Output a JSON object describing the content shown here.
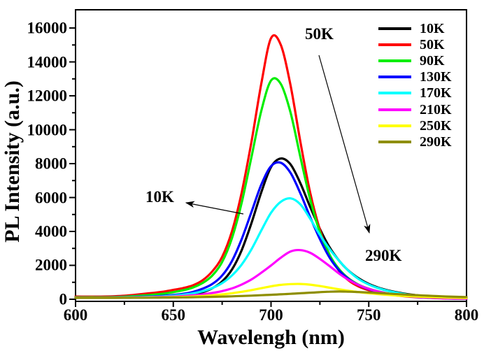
{
  "figure": {
    "background": "#ffffff",
    "text_color": "#000000"
  },
  "chart_data": {
    "type": "line",
    "title": "",
    "xlabel": "Wavelengh (nm)",
    "ylabel": "PL Intensity (a.u.)",
    "xlim": [
      600,
      800
    ],
    "ylim": [
      -125,
      17075
    ],
    "grid": false,
    "legend_position": "top-right-inside",
    "x_major_ticks": [
      600,
      650,
      700,
      750,
      800
    ],
    "x_minor_step": 25,
    "y_major_ticks": [
      0,
      2000,
      4000,
      6000,
      8000,
      10000,
      12000,
      14000,
      16000
    ],
    "y_minor_step": 1000,
    "x": [
      600,
      605,
      610,
      615,
      620,
      625,
      630,
      635,
      640,
      645,
      650,
      655,
      660,
      665,
      670,
      675,
      680,
      685,
      690,
      695,
      700,
      705,
      710,
      715,
      720,
      725,
      730,
      735,
      740,
      745,
      750,
      755,
      760,
      765,
      770,
      775,
      780,
      785,
      790,
      795,
      800
    ],
    "series": [
      {
        "name": "10K",
        "color": "#000000",
        "values": [
          110,
          110,
          110,
          112,
          115,
          120,
          125,
          132,
          140,
          160,
          190,
          230,
          300,
          420,
          650,
          1050,
          1750,
          2900,
          4500,
          6300,
          7800,
          8300,
          7950,
          6850,
          5450,
          4150,
          3050,
          2250,
          1650,
          1220,
          900,
          680,
          520,
          400,
          300,
          230,
          170,
          130,
          100,
          80,
          60
        ]
      },
      {
        "name": "50K",
        "color": "#ff0000",
        "values": [
          160,
          155,
          155,
          160,
          175,
          205,
          260,
          320,
          380,
          450,
          550,
          660,
          820,
          1120,
          1650,
          2500,
          4000,
          6300,
          9300,
          12700,
          15400,
          15000,
          12600,
          9300,
          6300,
          4100,
          2600,
          1650,
          1080,
          740,
          530,
          390,
          285,
          215,
          160,
          120,
          90,
          65,
          45,
          35,
          30
        ]
      },
      {
        "name": "90K",
        "color": "#00ee00",
        "values": [
          120,
          118,
          118,
          120,
          130,
          150,
          185,
          225,
          270,
          330,
          420,
          530,
          690,
          960,
          1400,
          2200,
          3600,
          5700,
          8400,
          11100,
          12900,
          12700,
          11000,
          8400,
          5900,
          3950,
          2600,
          1750,
          1200,
          850,
          620,
          460,
          340,
          260,
          195,
          150,
          110,
          85,
          65,
          50,
          40
        ]
      },
      {
        "name": "130K",
        "color": "#0000ff",
        "values": [
          100,
          100,
          100,
          103,
          108,
          118,
          130,
          148,
          170,
          200,
          250,
          320,
          430,
          620,
          900,
          1400,
          2250,
          3550,
          5150,
          6750,
          7850,
          8050,
          7450,
          6250,
          4850,
          3550,
          2450,
          1680,
          1170,
          820,
          590,
          430,
          315,
          235,
          175,
          130,
          95,
          72,
          55,
          42,
          32
        ]
      },
      {
        "name": "170K",
        "color": "#00ffff",
        "values": [
          95,
          95,
          95,
          98,
          102,
          110,
          120,
          132,
          148,
          170,
          210,
          265,
          345,
          470,
          660,
          950,
          1400,
          2050,
          2950,
          4050,
          5100,
          5750,
          5950,
          5600,
          4750,
          3800,
          2950,
          2250,
          1640,
          1180,
          870,
          650,
          490,
          370,
          275,
          205,
          150,
          112,
          85,
          65,
          50
        ]
      },
      {
        "name": "210K",
        "color": "#ff00ff",
        "values": [
          90,
          90,
          90,
          92,
          95,
          100,
          107,
          115,
          125,
          140,
          160,
          190,
          230,
          290,
          370,
          480,
          640,
          870,
          1170,
          1560,
          1990,
          2450,
          2820,
          2900,
          2740,
          2380,
          1950,
          1500,
          1120,
          830,
          610,
          450,
          330,
          245,
          182,
          138,
          105,
          80,
          62,
          50,
          40
        ]
      },
      {
        "name": "250K",
        "color": "#ffff00",
        "values": [
          85,
          85,
          85,
          86,
          88,
          92,
          96,
          100,
          106,
          114,
          125,
          140,
          160,
          190,
          230,
          285,
          355,
          440,
          540,
          650,
          760,
          850,
          895,
          900,
          860,
          780,
          680,
          585,
          495,
          420,
          355,
          300,
          255,
          215,
          182,
          155,
          132,
          112,
          96,
          84,
          75
        ]
      },
      {
        "name": "290K",
        "color": "#8e8e00",
        "values": [
          80,
          80,
          80,
          81,
          83,
          85,
          88,
          91,
          95,
          100,
          105,
          112,
          120,
          130,
          142,
          156,
          172,
          192,
          214,
          238,
          262,
          290,
          320,
          352,
          385,
          418,
          445,
          455,
          445,
          425,
          398,
          366,
          332,
          298,
          266,
          236,
          208,
          183,
          161,
          143,
          130
        ]
      }
    ],
    "annotations": [
      {
        "text": "50K"
      },
      {
        "text": "10K"
      },
      {
        "text": "290K"
      }
    ]
  }
}
